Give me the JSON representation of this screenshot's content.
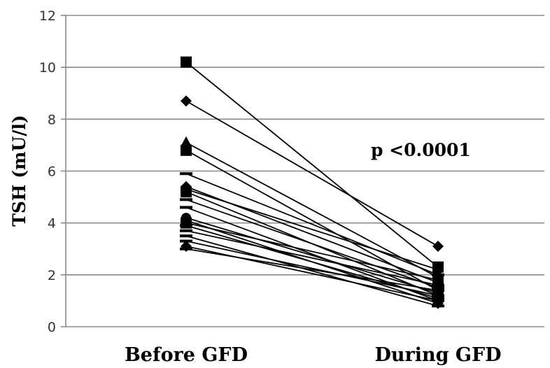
{
  "chart_data": {
    "type": "line",
    "categories": [
      "Before GFD",
      "During GFD"
    ],
    "ylabel": "TSH  (mU/l)",
    "ylim": [
      0,
      12
    ],
    "yticks": [
      0,
      2,
      4,
      6,
      8,
      10,
      12
    ],
    "grid": true,
    "annotation": "p <0.0001",
    "series": [
      {
        "marker": "square",
        "values": [
          10.2,
          2.3
        ]
      },
      {
        "marker": "diamond",
        "values": [
          8.7,
          3.1
        ]
      },
      {
        "marker": "triangle",
        "values": [
          7.1,
          1.9
        ]
      },
      {
        "marker": "square",
        "values": [
          6.8,
          1.4
        ]
      },
      {
        "marker": "dash",
        "values": [
          5.9,
          2.0
        ]
      },
      {
        "marker": "diamond",
        "values": [
          5.4,
          1.7
        ]
      },
      {
        "marker": "circle",
        "values": [
          5.3,
          2.2
        ]
      },
      {
        "marker": "square",
        "values": [
          5.2,
          1.2
        ]
      },
      {
        "marker": "dash",
        "values": [
          4.9,
          1.5
        ]
      },
      {
        "marker": "dash",
        "values": [
          4.6,
          1.0
        ]
      },
      {
        "marker": "circle",
        "values": [
          4.2,
          1.3
        ]
      },
      {
        "marker": "diamond",
        "values": [
          4.1,
          0.9
        ]
      },
      {
        "marker": "square",
        "values": [
          4.0,
          1.8
        ]
      },
      {
        "marker": "dash",
        "values": [
          3.9,
          1.1
        ]
      },
      {
        "marker": "dash",
        "values": [
          3.7,
          1.6
        ]
      },
      {
        "marker": "dash",
        "values": [
          3.5,
          0.8
        ]
      },
      {
        "marker": "dash",
        "values": [
          3.3,
          1.2
        ]
      },
      {
        "marker": "diamond",
        "values": [
          3.1,
          1.0
        ]
      },
      {
        "marker": "dash",
        "values": [
          3.0,
          1.4
        ]
      }
    ]
  }
}
